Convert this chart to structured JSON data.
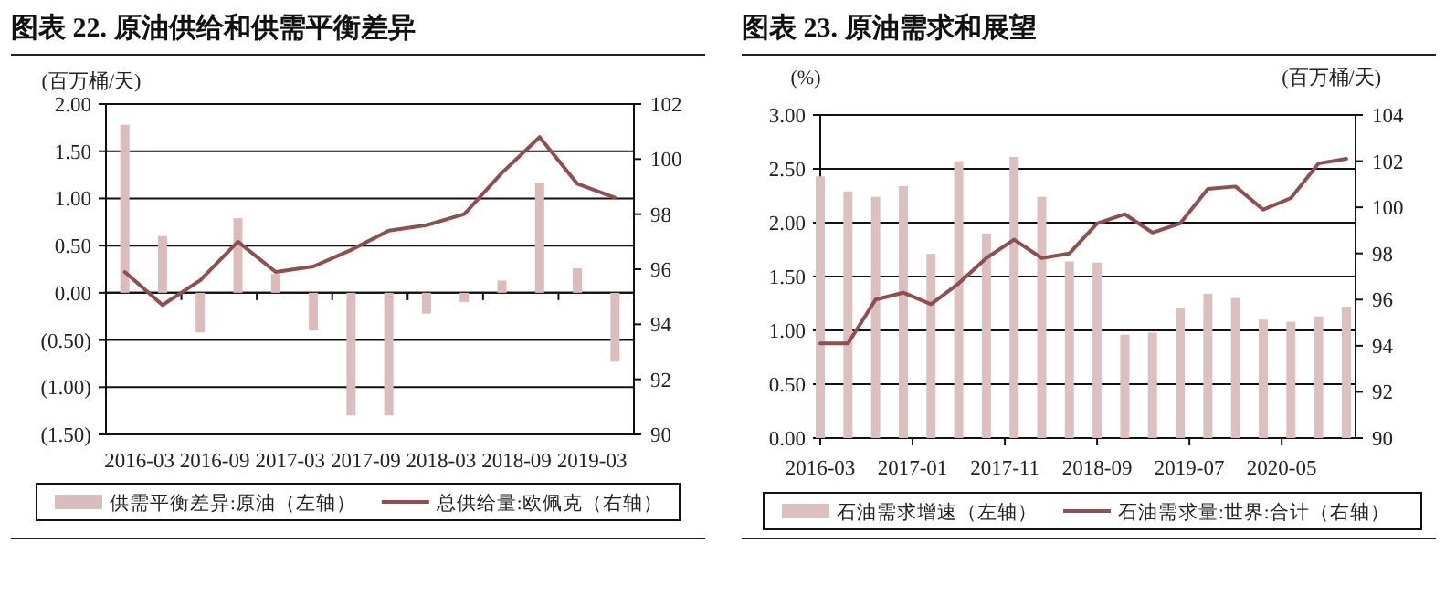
{
  "chart_data": [
    {
      "type": "bar",
      "title": "图表 22. 原油供给和供需平衡差异",
      "ylabel": "(百万桶/天)",
      "categories": [
        "2016-03",
        null,
        "2016-09",
        null,
        "2017-03",
        null,
        "2017-09",
        null,
        "2018-03",
        null,
        "2018-09",
        null,
        "2019-03",
        null
      ],
      "series": [
        {
          "name": "供需平衡差异:原油（左轴）",
          "color": "#dbbcbc",
          "values": [
            1.78,
            0.6,
            -0.42,
            0.79,
            0.2,
            -0.4,
            -1.3,
            -1.3,
            -0.22,
            -0.1,
            0.13,
            1.17,
            0.26,
            -0.73
          ]
        },
        {
          "name": "总供给量:欧佩克（右轴）",
          "type": "line",
          "axis": "y2",
          "color": "#8e4f52",
          "values": [
            95.9,
            94.7,
            95.6,
            97.0,
            95.9,
            96.1,
            96.7,
            97.4,
            97.6,
            98.0,
            99.5,
            100.8,
            99.1,
            98.6
          ]
        }
      ],
      "ylim": [
        -1.5,
        2
      ],
      "yticks": [
        {
          "value": -1.5,
          "label": "(1.50)"
        },
        {
          "value": -1,
          "label": "(1.00)"
        },
        {
          "value": -0.5,
          "label": "(0.50)"
        },
        {
          "value": 0,
          "label": "0.00"
        },
        {
          "value": 0.5,
          "label": "0.50"
        },
        {
          "value": 1,
          "label": "1.00"
        },
        {
          "value": 1.5,
          "label": "1.50"
        },
        {
          "value": 2,
          "label": "2.00"
        }
      ],
      "y2lim": [
        90,
        102
      ],
      "y2ticks": [
        90,
        92,
        94,
        96,
        98,
        100,
        102
      ],
      "grid": "y",
      "legend": "bottom"
    },
    {
      "type": "bar",
      "title": "图表 23. 原油需求和展望",
      "ylabel": "(%)",
      "y2label": "(百万桶/天)",
      "x": [
        "2016-03",
        "2016-06",
        "2016-09",
        "2016-12",
        "2017-03",
        "2017-06",
        "2017-09",
        "2017-12",
        "2018-03",
        "2018-06",
        "2018-09",
        "2018-12",
        "2019-03",
        "2019-06",
        "2019-09",
        "2019-12",
        "2020-03",
        "2020-06",
        "2020-09",
        "2020-12"
      ],
      "series": [
        {
          "name": "石油需求增速（左轴）",
          "color": "#dcc0c0",
          "values": [
            2.43,
            2.29,
            2.24,
            2.34,
            1.71,
            2.57,
            1.9,
            2.61,
            2.24,
            1.64,
            1.63,
            0.96,
            0.98,
            1.21,
            1.34,
            1.3,
            1.1,
            1.08,
            1.13,
            1.22
          ]
        },
        {
          "name": "石油需求量:世界:合计（右轴）",
          "type": "line",
          "axis": "y2",
          "color": "#8e4f52",
          "values": [
            94.1,
            94.1,
            96.0,
            96.3,
            95.8,
            96.7,
            97.8,
            98.6,
            97.8,
            98.0,
            99.3,
            99.7,
            98.9,
            99.3,
            100.8,
            100.9,
            99.9,
            100.4,
            101.9,
            102.1
          ]
        }
      ],
      "xlim": [
        "2016-03",
        "2021-01"
      ],
      "xticks": [
        "2016-03",
        "2017-01",
        "2017-11",
        "2018-09",
        "2019-07",
        "2020-05"
      ],
      "ylim": [
        0,
        3
      ],
      "yticks": [
        {
          "value": 0,
          "label": "0.00"
        },
        {
          "value": 0.5,
          "label": "0.50"
        },
        {
          "value": 1,
          "label": "1.00"
        },
        {
          "value": 1.5,
          "label": "1.50"
        },
        {
          "value": 2,
          "label": "2.00"
        },
        {
          "value": 2.5,
          "label": "2.50"
        },
        {
          "value": 3,
          "label": "3.00"
        }
      ],
      "y2lim": [
        90,
        104
      ],
      "y2ticks": [
        90,
        92,
        94,
        96,
        98,
        100,
        102,
        104
      ],
      "grid": "y",
      "legend": "bottom"
    }
  ]
}
